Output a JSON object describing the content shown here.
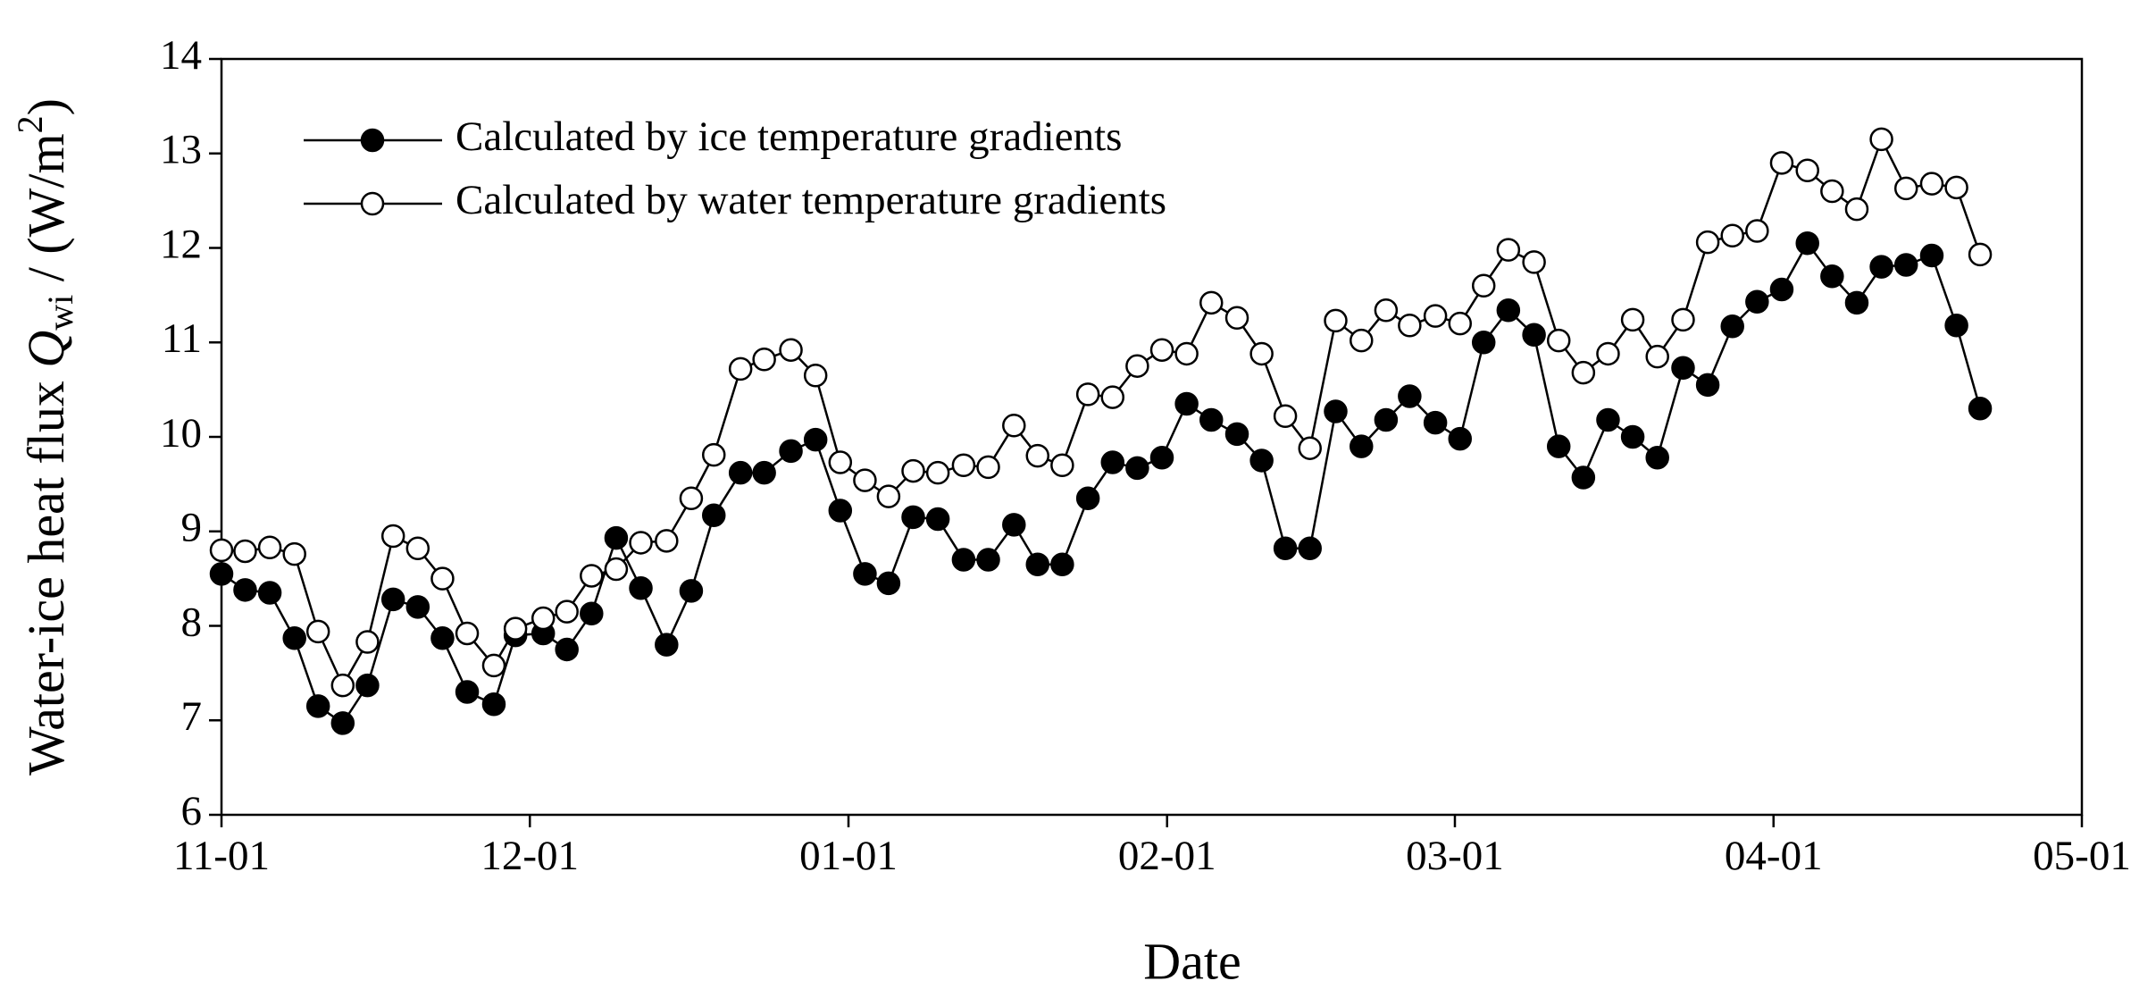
{
  "chart_data": {
    "type": "line",
    "xlabel": "Date",
    "ylabel_parts": [
      "Water-ice heat flux ",
      "Q",
      "wi",
      " / (W/m",
      "2",
      ")"
    ],
    "x": [
      0,
      2.3,
      4.7,
      7.1,
      9.4,
      11.8,
      14.2,
      16.7,
      19.1,
      21.5,
      23.9,
      26.5,
      28.6,
      31.3,
      33.6,
      36.0,
      38.4,
      40.8,
      43.3,
      45.7,
      47.9,
      50.5,
      52.8,
      55.4,
      57.8,
      60.2,
      62.6,
      64.9,
      67.3,
      69.7,
      72.2,
      74.6,
      77.1,
      79.4,
      81.8,
      84.3,
      86.7,
      89.1,
      91.5,
      93.9,
      96.3,
      98.8,
      101.2,
      103.5,
      105.9,
      108.4,
      110.9,
      113.3,
      115.6,
      118.1,
      120.5,
      122.8,
      125.2,
      127.7,
      130.1,
      132.5,
      134.9,
      137.3,
      139.7,
      142.2,
      144.6,
      147.0,
      149.4,
      151.8,
      154.3,
      156.7,
      159.1,
      161.5,
      163.9,
      166.4,
      168.8,
      171.1
    ],
    "series": [
      {
        "name": "Calculated by ice temperature gradients",
        "color": "#000000",
        "marker_fill": "#000000",
        "values": [
          8.55,
          8.38,
          8.35,
          7.87,
          7.15,
          6.97,
          7.37,
          8.28,
          8.2,
          7.87,
          7.3,
          7.17,
          7.9,
          7.92,
          7.75,
          8.13,
          8.93,
          8.4,
          7.8,
          8.37,
          9.17,
          9.62,
          9.62,
          9.85,
          9.97,
          9.22,
          8.55,
          8.45,
          9.15,
          9.13,
          8.7,
          8.7,
          9.07,
          8.65,
          8.65,
          9.35,
          9.73,
          9.67,
          9.78,
          10.35,
          10.18,
          10.03,
          9.75,
          8.82,
          8.82,
          10.27,
          9.9,
          10.18,
          10.43,
          10.15,
          9.98,
          11.0,
          11.34,
          11.08,
          9.9,
          9.57,
          10.18,
          10.0,
          9.78,
          10.73,
          10.55,
          11.17,
          11.43,
          11.56,
          12.05,
          11.7,
          11.42,
          11.8,
          11.82,
          11.92,
          11.18,
          10.3
        ]
      },
      {
        "name": "Calculated by water temperature gradients",
        "color": "#000000",
        "marker_fill": "#ffffff",
        "values": [
          8.8,
          8.79,
          8.83,
          8.76,
          7.94,
          7.37,
          7.83,
          8.95,
          8.82,
          8.5,
          7.92,
          7.58,
          7.97,
          8.08,
          8.15,
          8.53,
          8.6,
          8.88,
          8.9,
          9.35,
          9.81,
          10.72,
          10.82,
          10.92,
          10.65,
          9.73,
          9.54,
          9.37,
          9.64,
          9.62,
          9.7,
          9.68,
          10.12,
          9.8,
          9.7,
          10.45,
          10.42,
          10.75,
          10.92,
          10.88,
          11.42,
          11.26,
          10.88,
          10.22,
          9.88,
          11.23,
          11.02,
          11.34,
          11.18,
          11.28,
          11.2,
          11.6,
          11.98,
          11.85,
          11.02,
          10.68,
          10.88,
          11.24,
          10.85,
          11.24,
          12.06,
          12.13,
          12.18,
          12.9,
          12.82,
          12.6,
          12.41,
          13.15,
          12.63,
          12.68,
          12.64,
          11.93
        ]
      }
    ],
    "xlim": [
      0,
      181
    ],
    "xticks": [
      {
        "value": 0,
        "label": "11-01"
      },
      {
        "value": 30,
        "label": "12-01"
      },
      {
        "value": 61,
        "label": "01-01"
      },
      {
        "value": 92,
        "label": "02-01"
      },
      {
        "value": 120,
        "label": "03-01"
      },
      {
        "value": 151,
        "label": "04-01"
      },
      {
        "value": 181,
        "label": "05-01"
      }
    ],
    "ylim": [
      6,
      14
    ],
    "yticks": [
      6,
      7,
      8,
      9,
      10,
      11,
      12,
      13,
      14
    ],
    "grid": false,
    "legend": "upper left"
  }
}
